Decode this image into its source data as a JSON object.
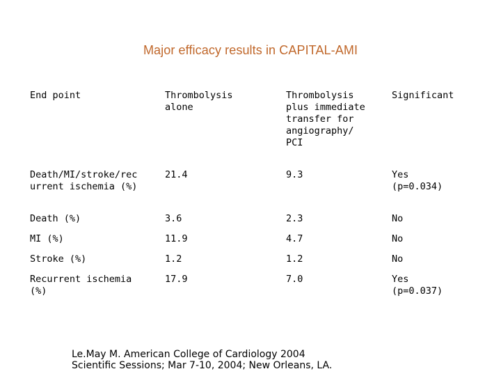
{
  "title": "Major efficacy results in CAPITAL-AMI",
  "table": {
    "headers": [
      "End point",
      "Thrombolysis\nalone",
      "Thrombolysis\nplus immediate\ntransfer for\nangiography/\nPCI",
      "Significant"
    ],
    "rows": [
      [
        "Death/MI/stroke/rec\nurrent ischemia (%)",
        "21.4",
        "9.3",
        "Yes\n(p=0.034)"
      ],
      [
        "Death (%)",
        "3.6",
        "2.3",
        "No"
      ],
      [
        "MI (%)",
        "11.9",
        "4.7",
        "No"
      ],
      [
        "Stroke (%)",
        "1.2",
        "1.2",
        "No"
      ],
      [
        "Recurrent ischemia\n(%)",
        "17.9",
        "7.0",
        "Yes\n(p=0.037)"
      ]
    ]
  },
  "source": {
    "line1": "Le.May M. American College of Cardiology 2004",
    "line2": "Scientific Sessions; Mar 7-10, 2004; New Orleans, LA."
  }
}
